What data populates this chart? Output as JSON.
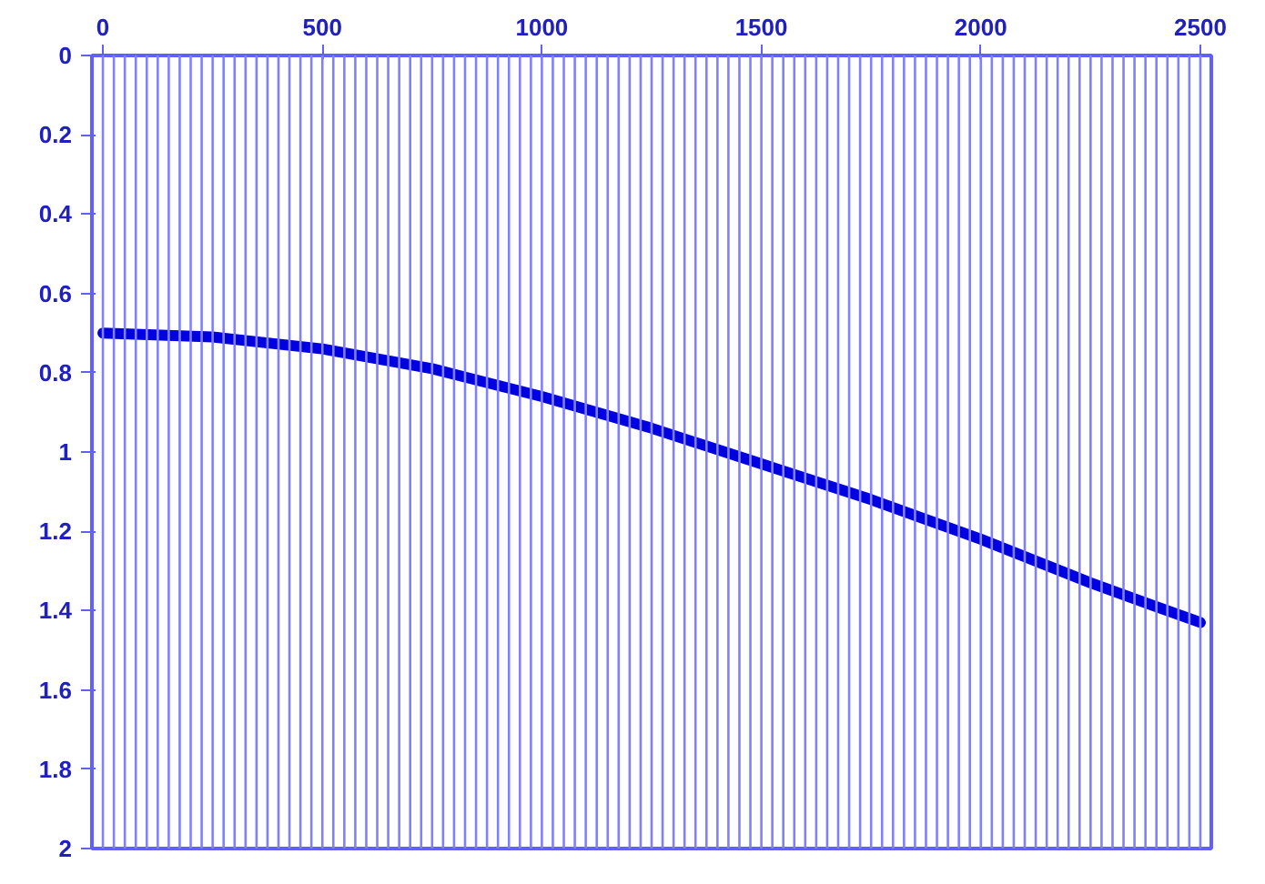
{
  "chart_data": {
    "type": "line",
    "x": [
      0,
      250,
      500,
      750,
      1000,
      1250,
      1500,
      1750,
      2000,
      2250,
      2500
    ],
    "series": [
      {
        "color": "#0000e0",
        "values": [
          0.7,
          0.71,
          0.74,
          0.79,
          0.86,
          0.94,
          1.03,
          1.12,
          1.22,
          1.33,
          1.43
        ]
      }
    ],
    "xlim": [
      -25,
      2525
    ],
    "xticks": [
      0,
      500,
      1000,
      1500,
      2000,
      2500
    ],
    "ylim": [
      2,
      0
    ],
    "yticks": [
      0,
      0.2,
      0.4,
      0.6,
      0.8,
      1,
      1.2,
      1.4,
      1.6,
      1.8,
      2
    ],
    "grid": false,
    "marker": "none",
    "line_style": "solid",
    "ref_lines": [
      {
        "axis": "x",
        "value": 0,
        "color": "#8080ff"
      },
      {
        "axis": "x",
        "value": 25,
        "color": "#8080ff"
      },
      {
        "axis": "x",
        "value": 50,
        "color": "#8080ff"
      },
      {
        "axis": "x",
        "value": 75,
        "color": "#8080ff"
      },
      {
        "axis": "x",
        "value": 100,
        "color": "#8080ff"
      },
      {
        "axis": "x",
        "value": 125,
        "color": "#8080ff"
      },
      {
        "axis": "x",
        "value": 150,
        "color": "#8080ff"
      },
      {
        "axis": "x",
        "value": 175,
        "color": "#8080ff"
      },
      {
        "axis": "x",
        "value": 200,
        "color": "#8080ff"
      },
      {
        "axis": "x",
        "value": 225,
        "color": "#8080ff"
      },
      {
        "axis": "x",
        "value": 250,
        "color": "#8080ff"
      },
      {
        "axis": "x",
        "value": 275,
        "color": "#8080ff"
      },
      {
        "axis": "x",
        "value": 300,
        "color": "#8080ff"
      },
      {
        "axis": "x",
        "value": 325,
        "color": "#8080ff"
      },
      {
        "axis": "x",
        "value": 350,
        "color": "#8080ff"
      },
      {
        "axis": "x",
        "value": 375,
        "color": "#8080ff"
      },
      {
        "axis": "x",
        "value": 400,
        "color": "#8080ff"
      },
      {
        "axis": "x",
        "value": 425,
        "color": "#8080ff"
      },
      {
        "axis": "x",
        "value": 450,
        "color": "#8080ff"
      },
      {
        "axis": "x",
        "value": 475,
        "color": "#8080ff"
      },
      {
        "axis": "x",
        "value": 500,
        "color": "#8080ff"
      },
      {
        "axis": "x",
        "value": 525,
        "color": "#8080ff"
      },
      {
        "axis": "x",
        "value": 550,
        "color": "#8080ff"
      },
      {
        "axis": "x",
        "value": 575,
        "color": "#8080ff"
      },
      {
        "axis": "x",
        "value": 600,
        "color": "#8080ff"
      },
      {
        "axis": "x",
        "value": 625,
        "color": "#8080ff"
      },
      {
        "axis": "x",
        "value": 650,
        "color": "#8080ff"
      },
      {
        "axis": "x",
        "value": 675,
        "color": "#8080ff"
      },
      {
        "axis": "x",
        "value": 700,
        "color": "#8080ff"
      },
      {
        "axis": "x",
        "value": 725,
        "color": "#8080ff"
      },
      {
        "axis": "x",
        "value": 750,
        "color": "#8080ff"
      },
      {
        "axis": "x",
        "value": 775,
        "color": "#8080ff"
      },
      {
        "axis": "x",
        "value": 800,
        "color": "#8080ff"
      },
      {
        "axis": "x",
        "value": 825,
        "color": "#8080ff"
      },
      {
        "axis": "x",
        "value": 850,
        "color": "#8080ff"
      },
      {
        "axis": "x",
        "value": 875,
        "color": "#8080ff"
      },
      {
        "axis": "x",
        "value": 900,
        "color": "#8080ff"
      },
      {
        "axis": "x",
        "value": 925,
        "color": "#8080ff"
      },
      {
        "axis": "x",
        "value": 950,
        "color": "#8080ff"
      },
      {
        "axis": "x",
        "value": 975,
        "color": "#8080ff"
      },
      {
        "axis": "x",
        "value": 1000,
        "color": "#8080ff"
      },
      {
        "axis": "x",
        "value": 1025,
        "color": "#8080ff"
      },
      {
        "axis": "x",
        "value": 1050,
        "color": "#8080ff"
      },
      {
        "axis": "x",
        "value": 1075,
        "color": "#8080ff"
      },
      {
        "axis": "x",
        "value": 1100,
        "color": "#8080ff"
      },
      {
        "axis": "x",
        "value": 1125,
        "color": "#8080ff"
      },
      {
        "axis": "x",
        "value": 1150,
        "color": "#8080ff"
      },
      {
        "axis": "x",
        "value": 1175,
        "color": "#8080ff"
      },
      {
        "axis": "x",
        "value": 1200,
        "color": "#8080ff"
      },
      {
        "axis": "x",
        "value": 1225,
        "color": "#8080ff"
      },
      {
        "axis": "x",
        "value": 1250,
        "color": "#8080ff"
      },
      {
        "axis": "x",
        "value": 1275,
        "color": "#8080ff"
      },
      {
        "axis": "x",
        "value": 1300,
        "color": "#8080ff"
      },
      {
        "axis": "x",
        "value": 1325,
        "color": "#8080ff"
      },
      {
        "axis": "x",
        "value": 1350,
        "color": "#8080ff"
      },
      {
        "axis": "x",
        "value": 1375,
        "color": "#8080ff"
      },
      {
        "axis": "x",
        "value": 1400,
        "color": "#8080ff"
      },
      {
        "axis": "x",
        "value": 1425,
        "color": "#8080ff"
      },
      {
        "axis": "x",
        "value": 1450,
        "color": "#8080ff"
      },
      {
        "axis": "x",
        "value": 1475,
        "color": "#8080ff"
      },
      {
        "axis": "x",
        "value": 1500,
        "color": "#8080ff"
      },
      {
        "axis": "x",
        "value": 1525,
        "color": "#8080ff"
      },
      {
        "axis": "x",
        "value": 1550,
        "color": "#8080ff"
      },
      {
        "axis": "x",
        "value": 1575,
        "color": "#8080ff"
      },
      {
        "axis": "x",
        "value": 1600,
        "color": "#8080ff"
      },
      {
        "axis": "x",
        "value": 1625,
        "color": "#8080ff"
      },
      {
        "axis": "x",
        "value": 1650,
        "color": "#8080ff"
      },
      {
        "axis": "x",
        "value": 1675,
        "color": "#8080ff"
      },
      {
        "axis": "x",
        "value": 1700,
        "color": "#8080ff"
      },
      {
        "axis": "x",
        "value": 1725,
        "color": "#8080ff"
      },
      {
        "axis": "x",
        "value": 1750,
        "color": "#8080ff"
      },
      {
        "axis": "x",
        "value": 1775,
        "color": "#8080ff"
      },
      {
        "axis": "x",
        "value": 1800,
        "color": "#8080ff"
      },
      {
        "axis": "x",
        "value": 1825,
        "color": "#8080ff"
      },
      {
        "axis": "x",
        "value": 1850,
        "color": "#8080ff"
      },
      {
        "axis": "x",
        "value": 1875,
        "color": "#8080ff"
      },
      {
        "axis": "x",
        "value": 1900,
        "color": "#8080ff"
      },
      {
        "axis": "x",
        "value": 1925,
        "color": "#8080ff"
      },
      {
        "axis": "x",
        "value": 1950,
        "color": "#8080ff"
      },
      {
        "axis": "x",
        "value": 1975,
        "color": "#8080ff"
      },
      {
        "axis": "x",
        "value": 2000,
        "color": "#8080ff"
      },
      {
        "axis": "x",
        "value": 2025,
        "color": "#8080ff"
      },
      {
        "axis": "x",
        "value": 2050,
        "color": "#8080ff"
      },
      {
        "axis": "x",
        "value": 2075,
        "color": "#8080ff"
      },
      {
        "axis": "x",
        "value": 2100,
        "color": "#8080ff"
      },
      {
        "axis": "x",
        "value": 2125,
        "color": "#8080ff"
      },
      {
        "axis": "x",
        "value": 2150,
        "color": "#8080ff"
      },
      {
        "axis": "x",
        "value": 2175,
        "color": "#8080ff"
      },
      {
        "axis": "x",
        "value": 2200,
        "color": "#8080ff"
      },
      {
        "axis": "x",
        "value": 2225,
        "color": "#8080ff"
      },
      {
        "axis": "x",
        "value": 2250,
        "color": "#8080ff"
      },
      {
        "axis": "x",
        "value": 2275,
        "color": "#8080ff"
      },
      {
        "axis": "x",
        "value": 2300,
        "color": "#8080ff"
      },
      {
        "axis": "x",
        "value": 2325,
        "color": "#8080ff"
      },
      {
        "axis": "x",
        "value": 2350,
        "color": "#8080ff"
      },
      {
        "axis": "x",
        "value": 2375,
        "color": "#8080ff"
      },
      {
        "axis": "x",
        "value": 2400,
        "color": "#8080ff"
      },
      {
        "axis": "x",
        "value": 2425,
        "color": "#8080ff"
      },
      {
        "axis": "x",
        "value": 2450,
        "color": "#8080ff"
      },
      {
        "axis": "x",
        "value": 2475,
        "color": "#8080ff"
      },
      {
        "axis": "x",
        "value": 2500,
        "color": "#8080ff"
      }
    ]
  }
}
